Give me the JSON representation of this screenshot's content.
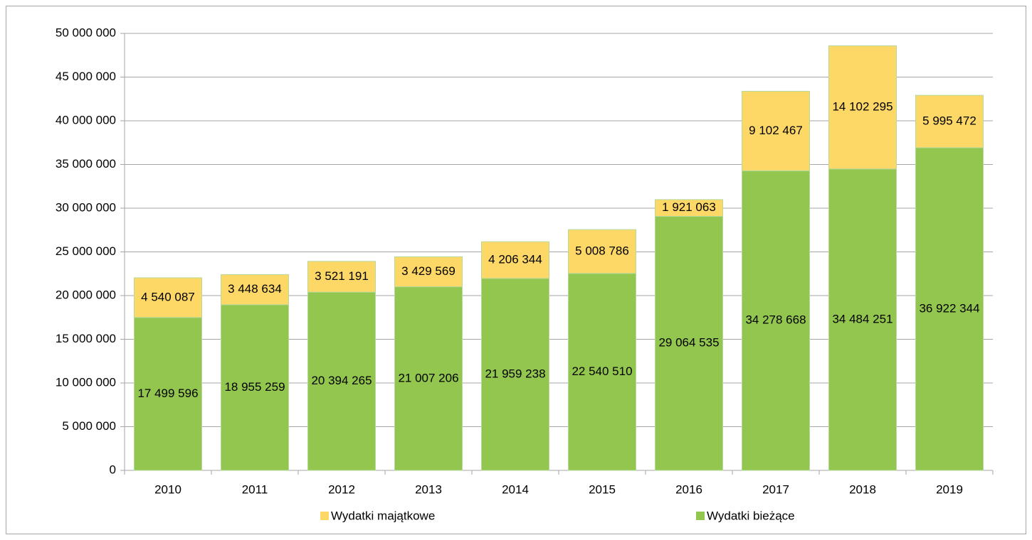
{
  "chart_data": {
    "type": "stacked_bar",
    "categories": [
      "2010",
      "2011",
      "2012",
      "2013",
      "2014",
      "2015",
      "2016",
      "2017",
      "2018",
      "2019"
    ],
    "series": [
      {
        "name": "Wydatki bieżące",
        "color": "#92c64f",
        "values": [
          17499596,
          18955259,
          20394265,
          21007206,
          21959238,
          22540510,
          29064535,
          34278668,
          34484251,
          36922344
        ],
        "value_labels": [
          "17 499 596",
          "18 955 259",
          "20 394 265",
          "21 007 206",
          "21 959 238",
          "22 540 510",
          "29 064 535",
          "34 278 668",
          "34 484 251",
          "36 922 344"
        ]
      },
      {
        "name": "Wydatki majątkowe",
        "color": "#fdd866",
        "values": [
          4540087,
          3448634,
          3521191,
          3429569,
          4206344,
          5008786,
          1921063,
          9102467,
          14102295,
          5995472
        ],
        "value_labels": [
          "4 540 087",
          "3 448 634",
          "3 521 191",
          "3 429 569",
          "4 206 344",
          "5 008 786",
          "1 921 063",
          "9 102 467",
          "14 102 295",
          "5 995 472"
        ]
      }
    ],
    "ylim": [
      0,
      50000000
    ],
    "yticks": [
      0,
      {
        "value": 5000000,
        "label": "5 000 000"
      },
      {
        "value": 10000000,
        "label": "10 000 000"
      },
      {
        "value": 15000000,
        "label": "15 000 000"
      },
      {
        "value": 20000000,
        "label": "20 000 000"
      },
      {
        "value": 25000000,
        "label": "25 000 000"
      },
      {
        "value": 30000000,
        "label": "30 000 000"
      },
      {
        "value": 35000000,
        "label": "35 000 000"
      },
      {
        "value": 40000000,
        "label": "40 000 000"
      },
      {
        "value": 45000000,
        "label": "45 000 000"
      },
      {
        "value": 50000000,
        "label": "50 000 000"
      }
    ],
    "grid": true,
    "legend": "bottom"
  }
}
